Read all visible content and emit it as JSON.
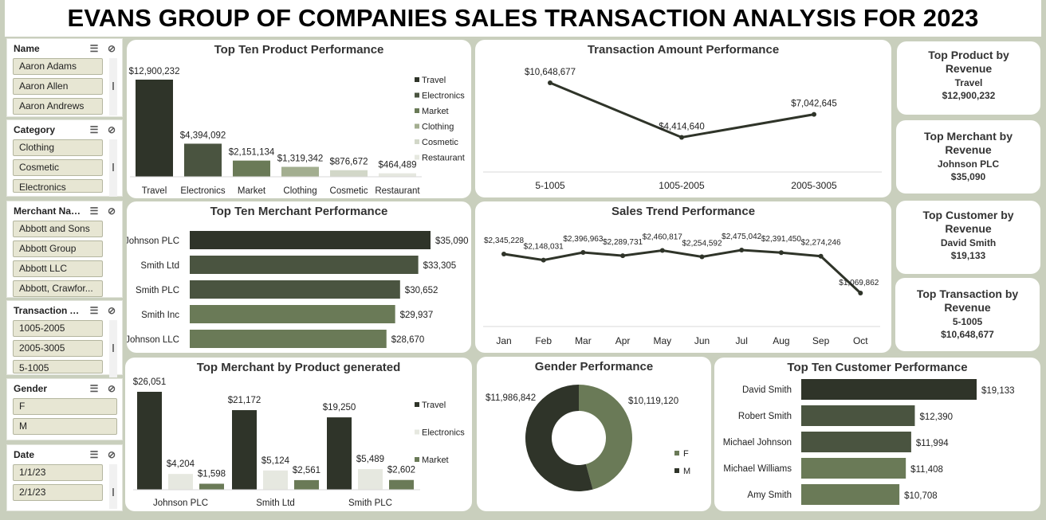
{
  "title": "EVANS GROUP OF COMPANIES SALES TRANSACTION ANALYSIS FOR 2023",
  "colors": {
    "dark": "#2f3429",
    "mid": "#4a5440",
    "green": "#6a7a57",
    "sage": "#a3ae90",
    "light": "#d2d7c8",
    "pale": "#e6e8e0",
    "slicer_item": "#e7e6d3"
  },
  "slicers": {
    "name": {
      "title": "Name",
      "items": [
        "Aaron Adams",
        "Aaron Allen",
        "Aaron Andrews"
      ]
    },
    "category": {
      "title": "Category",
      "items": [
        "Clothing",
        "Cosmetic",
        "Electronics"
      ]
    },
    "merchant": {
      "title": "Merchant Name",
      "items": [
        "Abbott and Sons",
        "Abbott Group",
        "Abbott LLC",
        "Abbott, Crawfor..."
      ]
    },
    "transaction": {
      "title": "Transaction A...",
      "items": [
        "1005-2005",
        "2005-3005",
        "5-1005"
      ]
    },
    "gender": {
      "title": "Gender",
      "items": [
        "F",
        "M"
      ]
    },
    "date": {
      "title": "Date",
      "items": [
        "1/1/23",
        "2/1/23"
      ]
    },
    "icons": {
      "multi_select": "multi-select-icon",
      "clear_filter": "clear-filter-icon"
    }
  },
  "panels": {
    "product": "Top Ten Product Performance",
    "transaction": "Transaction Amount Performance",
    "merchant": "Top Ten Merchant Performance",
    "trend": "Sales Trend Performance",
    "merchant_product": "Top Merchant by Product generated",
    "gender": "Gender Performance",
    "customer": "Top Ten Customer Performance"
  },
  "kpis": [
    {
      "label": "Top Product by Revenue",
      "name": "Travel",
      "value": "$12,900,232"
    },
    {
      "label": "Top Merchant by Revenue",
      "name": "Johnson PLC",
      "value": "$35,090"
    },
    {
      "label": "Top Customer by Revenue",
      "name": "David Smith",
      "value": "$19,133"
    },
    {
      "label": "Top Transaction by Revenue",
      "name": "5-1005",
      "value": "$10,648,677"
    }
  ],
  "chart_data": [
    {
      "id": "product",
      "type": "bar",
      "title": "Top Ten Product Performance",
      "categories": [
        "Travel",
        "Electronics",
        "Market",
        "Clothing",
        "Cosmetic",
        "Restaurant"
      ],
      "values": [
        12900232,
        4394092,
        2151134,
        1319342,
        876672,
        464489
      ],
      "labels": [
        "$12,900,232",
        "$4,394,092",
        "$2,151,134",
        "$1,319,342",
        "$876,672",
        "$464,489"
      ],
      "legend": [
        "Travel",
        "Electronics",
        "Market",
        "Clothing",
        "Cosmetic",
        "Restaurant"
      ],
      "legend_position": "right"
    },
    {
      "id": "transaction",
      "type": "line",
      "title": "Transaction Amount Performance",
      "categories": [
        "5-1005",
        "1005-2005",
        "2005-3005"
      ],
      "values": [
        10648677,
        4414640,
        7042645
      ],
      "labels": [
        "$10,648,677",
        "$4,414,640",
        "$7,042,645"
      ]
    },
    {
      "id": "merchant",
      "type": "bar",
      "orientation": "horizontal",
      "title": "Top Ten Merchant Performance",
      "categories": [
        "Johnson PLC",
        "Smith Ltd",
        "Smith PLC",
        "Smith Inc",
        "Johnson LLC"
      ],
      "values": [
        35090,
        33305,
        30652,
        29937,
        28670
      ],
      "labels": [
        "$35,090",
        "$33,305",
        "$30,652",
        "$29,937",
        "$28,670"
      ]
    },
    {
      "id": "trend",
      "type": "line",
      "title": "Sales Trend Performance",
      "categories": [
        "Jan",
        "Feb",
        "Mar",
        "Apr",
        "May",
        "Jun",
        "Jul",
        "Aug",
        "Sep",
        "Oct"
      ],
      "values": [
        2345228,
        2148031,
        2396963,
        2289731,
        2460817,
        2254592,
        2475042,
        2391450,
        2274246,
        1069862
      ],
      "labels": [
        "$2,345,228",
        "$2,148,031",
        "$2,396,963",
        "$2,289,731",
        "$2,460,817",
        "$2,254,592",
        "$2,475,042",
        "$2,391,450",
        "$2,274,246",
        "$1,069,862"
      ]
    },
    {
      "id": "merchant_product",
      "type": "bar",
      "title": "Top Merchant by Product generated",
      "categories": [
        "Johnson PLC",
        "Smith Ltd",
        "Smith PLC"
      ],
      "series": [
        {
          "name": "Travel",
          "values": [
            26051,
            21172,
            19250
          ],
          "labels": [
            "$26,051",
            "$21,172",
            "$19,250"
          ]
        },
        {
          "name": "Electronics",
          "values": [
            4204,
            5124,
            5489
          ],
          "labels": [
            "$4,204",
            "$5,124",
            "$5,489"
          ]
        },
        {
          "name": "Market",
          "values": [
            1598,
            2561,
            2602
          ],
          "labels": [
            "$1,598",
            "$2,561",
            "$2,602"
          ]
        }
      ],
      "legend_position": "right"
    },
    {
      "id": "gender",
      "type": "pie",
      "donut": true,
      "title": "Gender Performance",
      "categories": [
        "F",
        "M"
      ],
      "values": [
        10119120,
        11986842
      ],
      "labels": [
        "$10,119,120",
        "$11,986,842"
      ],
      "legend_position": "right"
    },
    {
      "id": "customer",
      "type": "bar",
      "orientation": "horizontal",
      "title": "Top Ten Customer Performance",
      "categories": [
        "David Smith",
        "Robert Smith",
        "Michael Johnson",
        "Michael Williams",
        "Amy Smith"
      ],
      "values": [
        19133,
        12390,
        11994,
        11408,
        10708
      ],
      "labels": [
        "$19,133",
        "$12,390",
        "$11,994",
        "$11,408",
        "$10,708"
      ]
    }
  ]
}
